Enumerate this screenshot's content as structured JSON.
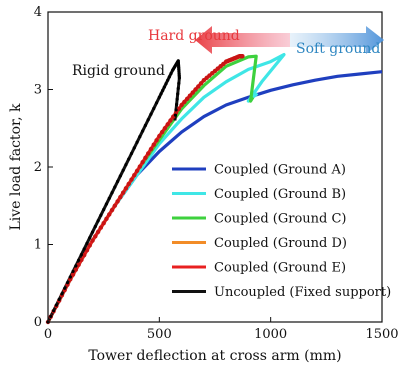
{
  "chart_data": {
    "type": "line",
    "xlabel": "Tower deflection at cross arm (mm)",
    "ylabel": "Live load factor, k",
    "xlim": [
      0,
      1500
    ],
    "ylim": [
      0,
      4
    ],
    "xticks": [
      "0",
      "500",
      "1000",
      "1500"
    ],
    "yticks": [
      "0",
      "1",
      "2",
      "3",
      "4"
    ],
    "legend_position": "bottom-right",
    "annotations": [
      {
        "text": "Hard ground",
        "color": "#e8383d"
      },
      {
        "text": "Soft ground",
        "color": "#2e86c1"
      },
      {
        "text": "Rigid ground",
        "color": "#111111"
      }
    ],
    "series": [
      {
        "name": "Coupled (Ground A)",
        "color": "#1f3fbf",
        "x": [
          0,
          100,
          200,
          300,
          400,
          500,
          600,
          700,
          800,
          900,
          1000,
          1100,
          1200,
          1300,
          1400,
          1500
        ],
        "y": [
          0,
          0.55,
          1.05,
          1.5,
          1.9,
          2.2,
          2.45,
          2.65,
          2.8,
          2.9,
          2.99,
          3.06,
          3.12,
          3.17,
          3.2,
          3.23
        ]
      },
      {
        "name": "Coupled (Ground B)",
        "color": "#3fe6e6",
        "x": [
          0,
          100,
          200,
          300,
          400,
          500,
          600,
          700,
          800,
          900,
          1000,
          1060,
          960,
          900,
          940
        ],
        "y": [
          0,
          0.55,
          1.05,
          1.5,
          1.9,
          2.3,
          2.62,
          2.9,
          3.1,
          3.26,
          3.36,
          3.45,
          3.1,
          2.85,
          2.95
        ]
      },
      {
        "name": "Coupled (Ground C)",
        "color": "#3ed13e",
        "x": [
          0,
          100,
          200,
          300,
          400,
          500,
          600,
          700,
          800,
          900,
          935,
          910,
          920
        ],
        "y": [
          0,
          0.55,
          1.05,
          1.5,
          1.95,
          2.35,
          2.75,
          3.05,
          3.3,
          3.42,
          3.43,
          2.85,
          2.9
        ]
      },
      {
        "name": "Coupled (Ground D)",
        "color": "#f28c28",
        "x": [
          0,
          100,
          200,
          300,
          400,
          500,
          600,
          700,
          800,
          870,
          880
        ],
        "y": [
          0,
          0.55,
          1.05,
          1.5,
          1.95,
          2.4,
          2.8,
          3.12,
          3.35,
          3.43,
          3.43
        ]
      },
      {
        "name": "Coupled (Ground E)",
        "color": "#e82020",
        "x": [
          0,
          100,
          200,
          300,
          400,
          500,
          600,
          700,
          800,
          860,
          875
        ],
        "y": [
          0,
          0.55,
          1.05,
          1.5,
          1.95,
          2.4,
          2.8,
          3.12,
          3.36,
          3.43,
          3.43
        ]
      },
      {
        "name": "Uncoupled (Fixed support)",
        "color": "#111111",
        "x": [
          0,
          100,
          200,
          300,
          400,
          500,
          560,
          585,
          590,
          570
        ],
        "y": [
          0,
          0.58,
          1.16,
          1.74,
          2.32,
          2.9,
          3.25,
          3.37,
          3.15,
          2.6
        ]
      }
    ]
  }
}
